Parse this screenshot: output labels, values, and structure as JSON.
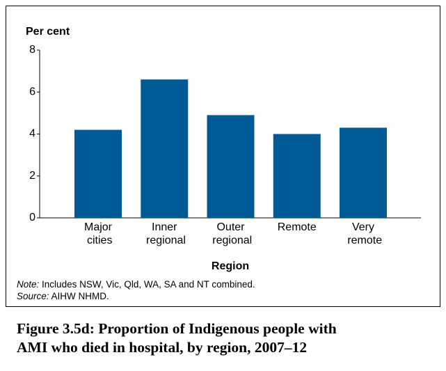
{
  "chart_data": {
    "type": "bar",
    "y_axis_label": "Per cent",
    "x_axis_label": "Region",
    "categories": [
      "Major cities",
      "Inner regional",
      "Outer regional",
      "Remote",
      "Very remote"
    ],
    "values": [
      4.2,
      6.6,
      4.9,
      4.0,
      4.3
    ],
    "color": "#005a96",
    "ylim": [
      0,
      8
    ],
    "yticks": [
      0,
      2,
      4,
      6,
      8
    ],
    "grid": false,
    "note_label": "Note:",
    "note": "Includes NSW, Vic, Qld, WA, SA and NT combined.",
    "source_label": "Source:",
    "source": "AIHW NHMD.",
    "figure_title": [
      "Figure 3.5d: Proportion of Indigenous people with",
      "AMI who died in hospital, by region, 2007–12"
    ]
  }
}
